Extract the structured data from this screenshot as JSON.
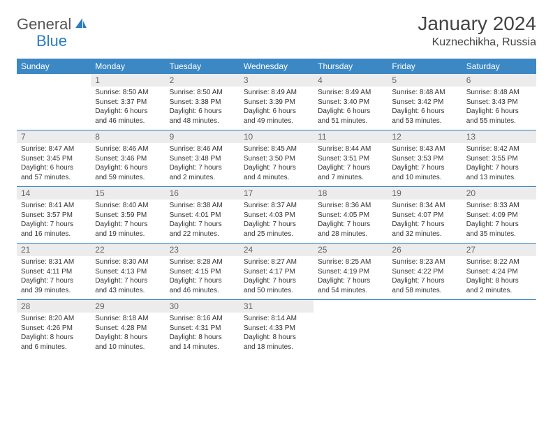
{
  "logo": {
    "word1": "General",
    "word2": "Blue",
    "icon_color": "#2e7cc0"
  },
  "title": "January 2024",
  "location": "Kuznechikha, Russia",
  "colors": {
    "header_bg": "#3b88c4",
    "header_fg": "#ffffff",
    "rule": "#2e7cc0",
    "daynum_bg": "#ececec",
    "daynum_fg": "#666666",
    "text": "#333333"
  },
  "weekdays": [
    "Sunday",
    "Monday",
    "Tuesday",
    "Wednesday",
    "Thursday",
    "Friday",
    "Saturday"
  ],
  "layout": {
    "columns": 7,
    "rows": 5,
    "type": "calendar"
  },
  "weeks": [
    [
      {
        "n": "",
        "lines": [
          "",
          "",
          "",
          ""
        ]
      },
      {
        "n": "1",
        "lines": [
          "Sunrise: 8:50 AM",
          "Sunset: 3:37 PM",
          "Daylight: 6 hours",
          "and 46 minutes."
        ]
      },
      {
        "n": "2",
        "lines": [
          "Sunrise: 8:50 AM",
          "Sunset: 3:38 PM",
          "Daylight: 6 hours",
          "and 48 minutes."
        ]
      },
      {
        "n": "3",
        "lines": [
          "Sunrise: 8:49 AM",
          "Sunset: 3:39 PM",
          "Daylight: 6 hours",
          "and 49 minutes."
        ]
      },
      {
        "n": "4",
        "lines": [
          "Sunrise: 8:49 AM",
          "Sunset: 3:40 PM",
          "Daylight: 6 hours",
          "and 51 minutes."
        ]
      },
      {
        "n": "5",
        "lines": [
          "Sunrise: 8:48 AM",
          "Sunset: 3:42 PM",
          "Daylight: 6 hours",
          "and 53 minutes."
        ]
      },
      {
        "n": "6",
        "lines": [
          "Sunrise: 8:48 AM",
          "Sunset: 3:43 PM",
          "Daylight: 6 hours",
          "and 55 minutes."
        ]
      }
    ],
    [
      {
        "n": "7",
        "lines": [
          "Sunrise: 8:47 AM",
          "Sunset: 3:45 PM",
          "Daylight: 6 hours",
          "and 57 minutes."
        ]
      },
      {
        "n": "8",
        "lines": [
          "Sunrise: 8:46 AM",
          "Sunset: 3:46 PM",
          "Daylight: 6 hours",
          "and 59 minutes."
        ]
      },
      {
        "n": "9",
        "lines": [
          "Sunrise: 8:46 AM",
          "Sunset: 3:48 PM",
          "Daylight: 7 hours",
          "and 2 minutes."
        ]
      },
      {
        "n": "10",
        "lines": [
          "Sunrise: 8:45 AM",
          "Sunset: 3:50 PM",
          "Daylight: 7 hours",
          "and 4 minutes."
        ]
      },
      {
        "n": "11",
        "lines": [
          "Sunrise: 8:44 AM",
          "Sunset: 3:51 PM",
          "Daylight: 7 hours",
          "and 7 minutes."
        ]
      },
      {
        "n": "12",
        "lines": [
          "Sunrise: 8:43 AM",
          "Sunset: 3:53 PM",
          "Daylight: 7 hours",
          "and 10 minutes."
        ]
      },
      {
        "n": "13",
        "lines": [
          "Sunrise: 8:42 AM",
          "Sunset: 3:55 PM",
          "Daylight: 7 hours",
          "and 13 minutes."
        ]
      }
    ],
    [
      {
        "n": "14",
        "lines": [
          "Sunrise: 8:41 AM",
          "Sunset: 3:57 PM",
          "Daylight: 7 hours",
          "and 16 minutes."
        ]
      },
      {
        "n": "15",
        "lines": [
          "Sunrise: 8:40 AM",
          "Sunset: 3:59 PM",
          "Daylight: 7 hours",
          "and 19 minutes."
        ]
      },
      {
        "n": "16",
        "lines": [
          "Sunrise: 8:38 AM",
          "Sunset: 4:01 PM",
          "Daylight: 7 hours",
          "and 22 minutes."
        ]
      },
      {
        "n": "17",
        "lines": [
          "Sunrise: 8:37 AM",
          "Sunset: 4:03 PM",
          "Daylight: 7 hours",
          "and 25 minutes."
        ]
      },
      {
        "n": "18",
        "lines": [
          "Sunrise: 8:36 AM",
          "Sunset: 4:05 PM",
          "Daylight: 7 hours",
          "and 28 minutes."
        ]
      },
      {
        "n": "19",
        "lines": [
          "Sunrise: 8:34 AM",
          "Sunset: 4:07 PM",
          "Daylight: 7 hours",
          "and 32 minutes."
        ]
      },
      {
        "n": "20",
        "lines": [
          "Sunrise: 8:33 AM",
          "Sunset: 4:09 PM",
          "Daylight: 7 hours",
          "and 35 minutes."
        ]
      }
    ],
    [
      {
        "n": "21",
        "lines": [
          "Sunrise: 8:31 AM",
          "Sunset: 4:11 PM",
          "Daylight: 7 hours",
          "and 39 minutes."
        ]
      },
      {
        "n": "22",
        "lines": [
          "Sunrise: 8:30 AM",
          "Sunset: 4:13 PM",
          "Daylight: 7 hours",
          "and 43 minutes."
        ]
      },
      {
        "n": "23",
        "lines": [
          "Sunrise: 8:28 AM",
          "Sunset: 4:15 PM",
          "Daylight: 7 hours",
          "and 46 minutes."
        ]
      },
      {
        "n": "24",
        "lines": [
          "Sunrise: 8:27 AM",
          "Sunset: 4:17 PM",
          "Daylight: 7 hours",
          "and 50 minutes."
        ]
      },
      {
        "n": "25",
        "lines": [
          "Sunrise: 8:25 AM",
          "Sunset: 4:19 PM",
          "Daylight: 7 hours",
          "and 54 minutes."
        ]
      },
      {
        "n": "26",
        "lines": [
          "Sunrise: 8:23 AM",
          "Sunset: 4:22 PM",
          "Daylight: 7 hours",
          "and 58 minutes."
        ]
      },
      {
        "n": "27",
        "lines": [
          "Sunrise: 8:22 AM",
          "Sunset: 4:24 PM",
          "Daylight: 8 hours",
          "and 2 minutes."
        ]
      }
    ],
    [
      {
        "n": "28",
        "lines": [
          "Sunrise: 8:20 AM",
          "Sunset: 4:26 PM",
          "Daylight: 8 hours",
          "and 6 minutes."
        ]
      },
      {
        "n": "29",
        "lines": [
          "Sunrise: 8:18 AM",
          "Sunset: 4:28 PM",
          "Daylight: 8 hours",
          "and 10 minutes."
        ]
      },
      {
        "n": "30",
        "lines": [
          "Sunrise: 8:16 AM",
          "Sunset: 4:31 PM",
          "Daylight: 8 hours",
          "and 14 minutes."
        ]
      },
      {
        "n": "31",
        "lines": [
          "Sunrise: 8:14 AM",
          "Sunset: 4:33 PM",
          "Daylight: 8 hours",
          "and 18 minutes."
        ]
      },
      {
        "n": "",
        "lines": [
          "",
          "",
          "",
          ""
        ]
      },
      {
        "n": "",
        "lines": [
          "",
          "",
          "",
          ""
        ]
      },
      {
        "n": "",
        "lines": [
          "",
          "",
          "",
          ""
        ]
      }
    ]
  ]
}
